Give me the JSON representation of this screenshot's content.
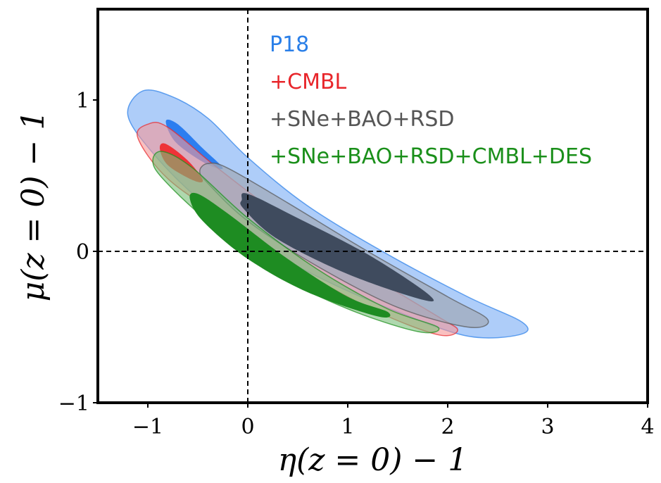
{
  "chart_data": {
    "type": "contour",
    "xlabel": "η(z = 0) − 1",
    "ylabel": "μ(z = 0) − 1",
    "xlim": [
      -1.5,
      4
    ],
    "ylim": [
      -1,
      1.6
    ],
    "xticks": [
      -1,
      0,
      1,
      2,
      3,
      4
    ],
    "yticks": [
      -1,
      0,
      1
    ],
    "xtick_labels": [
      "−1",
      "0",
      "1",
      "2",
      "3",
      "4"
    ],
    "ytick_labels": [
      "−1",
      "0",
      "1"
    ],
    "reference_lines": [
      {
        "orientation": "vertical",
        "value": 0,
        "style": "dashed"
      },
      {
        "orientation": "horizontal",
        "value": 0,
        "style": "dashed"
      }
    ],
    "legend_position": "top-left (inside)",
    "series": [
      {
        "name": "P18",
        "color": "#2a7fe8",
        "fill_outer": "rgba(107,164,244,0.55)",
        "fill_inner": "#2c7ef0",
        "outer_contour": [
          [
            -1.2,
            0.9
          ],
          [
            -1.05,
            1.06
          ],
          [
            -0.75,
            1.02
          ],
          [
            -0.4,
            0.88
          ],
          [
            0,
            0.62
          ],
          [
            0.6,
            0.3
          ],
          [
            1.4,
            -0.02
          ],
          [
            2.2,
            -0.3
          ],
          [
            2.75,
            -0.47
          ],
          [
            2.72,
            -0.55
          ],
          [
            2.2,
            -0.56
          ],
          [
            1.5,
            -0.4
          ],
          [
            0.8,
            -0.2
          ],
          [
            0.1,
            0.05
          ],
          [
            -0.5,
            0.35
          ],
          [
            -0.95,
            0.65
          ]
        ],
        "inner_contour": [
          [
            -0.82,
            0.86
          ],
          [
            -0.7,
            0.84
          ],
          [
            -0.45,
            0.68
          ],
          [
            -0.25,
            0.55
          ],
          [
            -0.42,
            0.58
          ],
          [
            -0.72,
            0.72
          ]
        ]
      },
      {
        "name": "+CMBL",
        "color": "#e8262b",
        "fill_outer": "rgba(245,150,150,0.6)",
        "fill_inner": "#ee3338",
        "outer_contour": [
          [
            -1.1,
            0.75
          ],
          [
            -1.0,
            0.84
          ],
          [
            -0.8,
            0.82
          ],
          [
            -0.3,
            0.55
          ],
          [
            0.4,
            0.2
          ],
          [
            1.2,
            -0.15
          ],
          [
            1.9,
            -0.43
          ],
          [
            2.1,
            -0.52
          ],
          [
            1.9,
            -0.55
          ],
          [
            1.3,
            -0.4
          ],
          [
            0.6,
            -0.15
          ],
          [
            -0.2,
            0.2
          ],
          [
            -0.8,
            0.48
          ]
        ],
        "inner_contour": [
          [
            -0.88,
            0.68
          ],
          [
            -0.82,
            0.71
          ],
          [
            -0.6,
            0.6
          ],
          [
            -0.45,
            0.47
          ],
          [
            -0.55,
            0.47
          ],
          [
            -0.8,
            0.57
          ]
        ]
      },
      {
        "name": "+SNe+BAO+RSD",
        "color": "#555555",
        "fill_outer": "rgba(160,170,185,0.75)",
        "fill_inner": "#3f4b5e",
        "outer_contour": [
          [
            -0.48,
            0.53
          ],
          [
            -0.4,
            0.58
          ],
          [
            -0.2,
            0.55
          ],
          [
            0.4,
            0.32
          ],
          [
            1.2,
            0.0
          ],
          [
            2.0,
            -0.3
          ],
          [
            2.4,
            -0.45
          ],
          [
            2.2,
            -0.5
          ],
          [
            1.5,
            -0.37
          ],
          [
            0.7,
            -0.1
          ],
          [
            0.0,
            0.2
          ],
          [
            -0.4,
            0.45
          ]
        ],
        "inner_contour": [
          [
            -0.06,
            0.34
          ],
          [
            0,
            0.38
          ],
          [
            0.5,
            0.22
          ],
          [
            1.2,
            -0.02
          ],
          [
            1.8,
            -0.28
          ],
          [
            1.75,
            -0.32
          ],
          [
            1.0,
            -0.15
          ],
          [
            0.3,
            0.08
          ],
          [
            -0.04,
            0.28
          ]
        ]
      },
      {
        "name": "+SNe+BAO+RSD+CMBL+DES",
        "color": "#1a8f1a",
        "fill_outer": "rgba(120,190,120,0.6)",
        "fill_inner": "#1e8c22",
        "outer_contour": [
          [
            -0.95,
            0.6
          ],
          [
            -0.85,
            0.66
          ],
          [
            -0.55,
            0.55
          ],
          [
            0.0,
            0.22
          ],
          [
            0.7,
            -0.12
          ],
          [
            1.4,
            -0.38
          ],
          [
            1.9,
            -0.5
          ],
          [
            1.7,
            -0.53
          ],
          [
            1.0,
            -0.38
          ],
          [
            0.3,
            -0.15
          ],
          [
            -0.4,
            0.2
          ],
          [
            -0.85,
            0.48
          ]
        ],
        "inner_contour": [
          [
            -0.58,
            0.35
          ],
          [
            -0.5,
            0.38
          ],
          [
            -0.2,
            0.25
          ],
          [
            0.4,
            -0.05
          ],
          [
            1.0,
            -0.3
          ],
          [
            1.4,
            -0.4
          ],
          [
            1.3,
            -0.43
          ],
          [
            0.6,
            -0.27
          ],
          [
            0.0,
            -0.05
          ],
          [
            -0.45,
            0.2
          ]
        ]
      }
    ]
  }
}
